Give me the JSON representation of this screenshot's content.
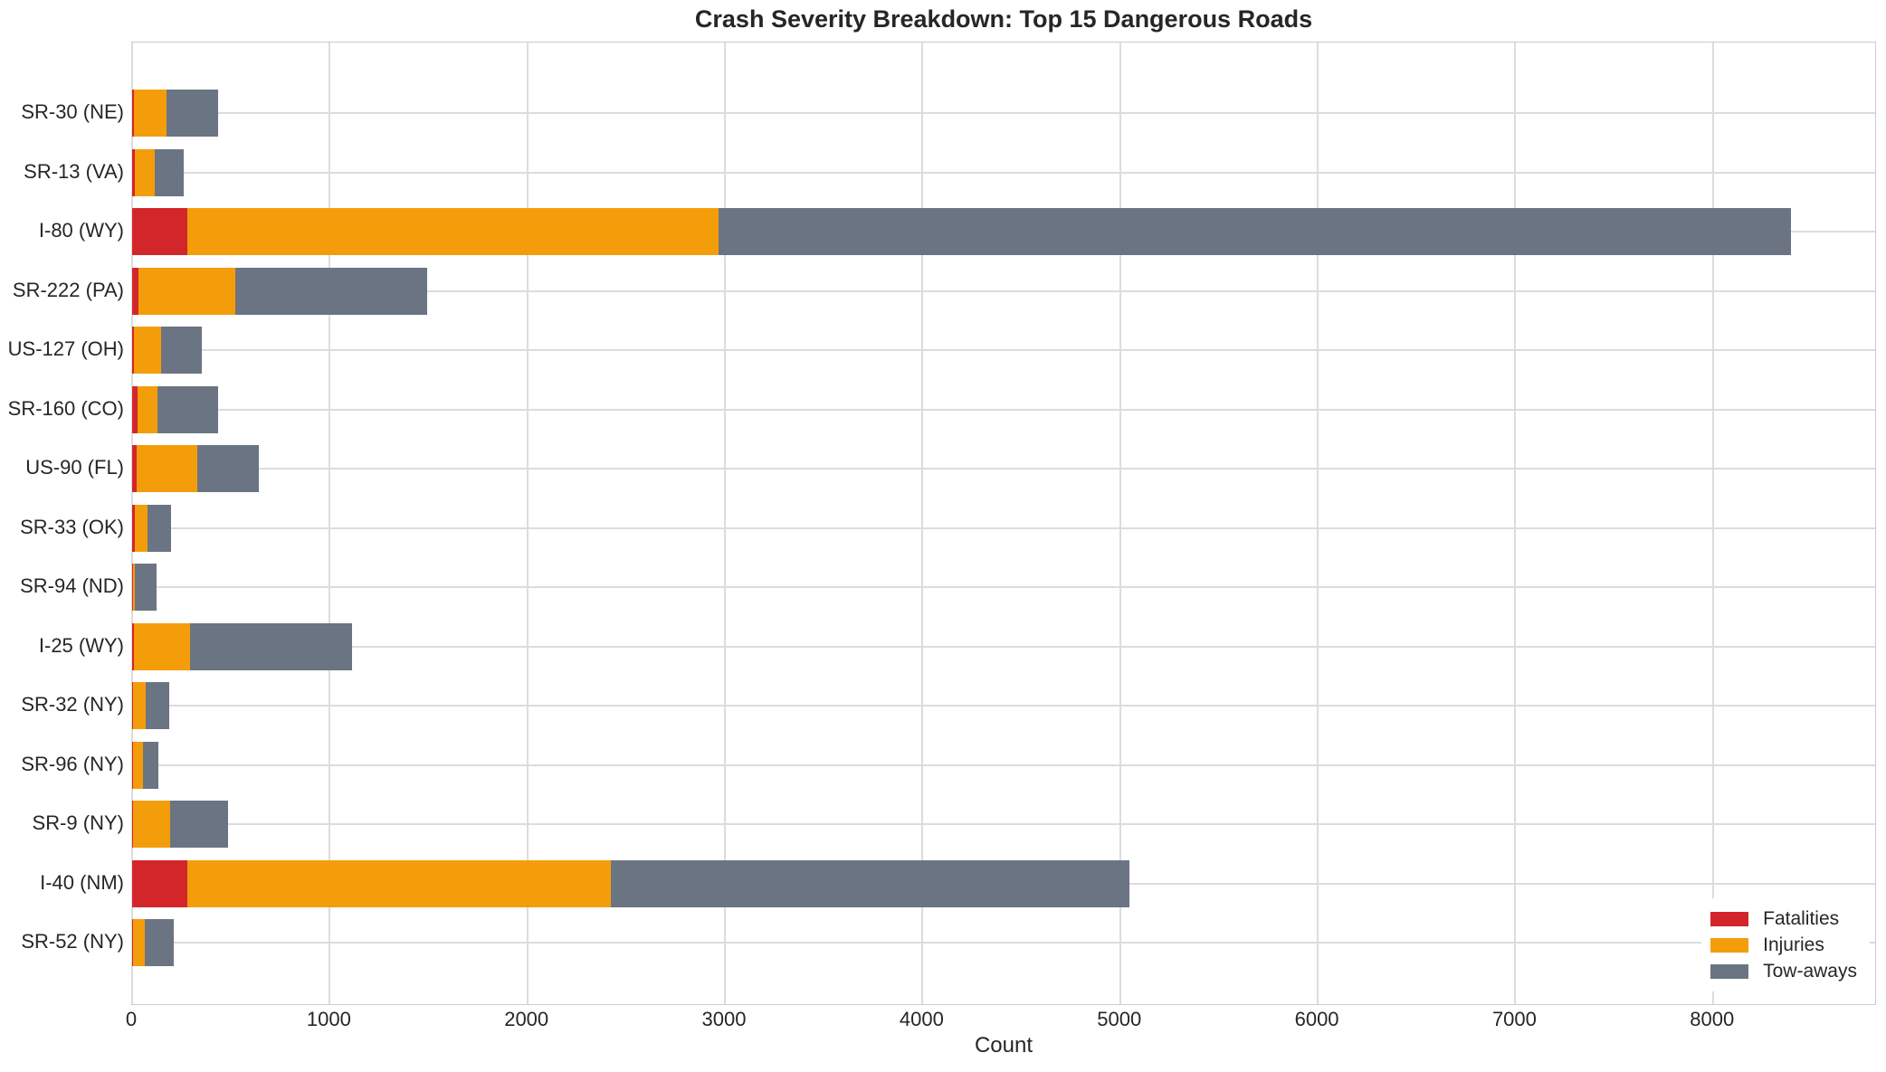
{
  "chart_data": {
    "type": "bar",
    "orientation": "horizontal",
    "stacked": true,
    "title": "Crash Severity Breakdown: Top 15 Dangerous Roads",
    "xlabel": "Count",
    "ylabel": "",
    "xlim": [
      0,
      8830
    ],
    "x_ticks": [
      0,
      1000,
      2000,
      3000,
      4000,
      5000,
      6000,
      7000,
      8000
    ],
    "grid": true,
    "legend_position": "lower right",
    "background_color": "#ffffff",
    "grid_color": "#dcdcdc",
    "text_color": "#262626",
    "categories": [
      "SR-30 (NE)",
      "SR-13 (VA)",
      "I-80 (WY)",
      "SR-222 (PA)",
      "US-127 (OH)",
      "SR-160 (CO)",
      "US-90 (FL)",
      "SR-33 (OK)",
      "SR-94 (ND)",
      "I-25 (WY)",
      "SR-32 (NY)",
      "SR-96 (NY)",
      "SR-9 (NY)",
      "I-40 (NM)",
      "SR-52 (NY)"
    ],
    "series": [
      {
        "name": "Fatalities",
        "color": "#d2262b",
        "values": [
          8,
          15,
          278,
          30,
          11,
          27,
          24,
          14,
          3,
          11,
          3,
          3,
          6,
          278,
          4
        ]
      },
      {
        "name": "Injuries",
        "color": "#f49d0a",
        "values": [
          166,
          100,
          2690,
          494,
          134,
          100,
          304,
          62,
          12,
          280,
          66,
          51,
          186,
          2144,
          62
        ]
      },
      {
        "name": "Tow-aways",
        "color": "#6b7483",
        "values": [
          261,
          145,
          5427,
          971,
          206,
          308,
          314,
          122,
          110,
          820,
          117,
          77,
          293,
          2626,
          143
        ]
      }
    ],
    "totals": [
      435,
      260,
      8395,
      1495,
      351,
      435,
      642,
      198,
      125,
      1111,
      186,
      131,
      485,
      5048,
      209
    ]
  }
}
